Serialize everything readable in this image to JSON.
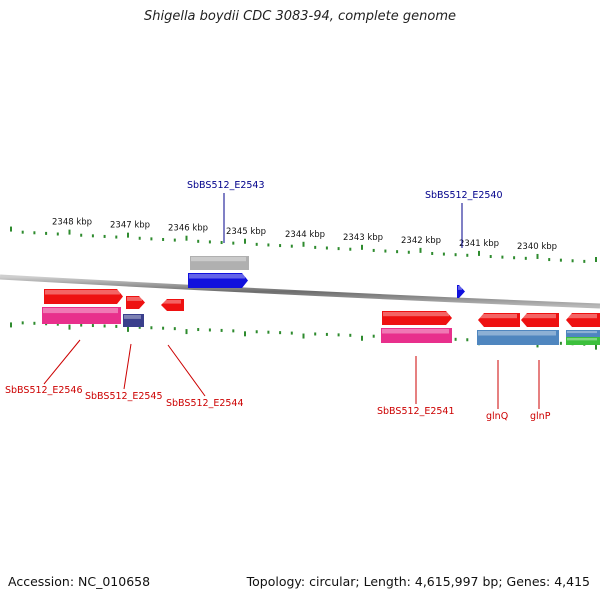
{
  "title": "Shigella boydii CDC 3083-94, complete genome",
  "footer": {
    "accession": "Accession: NC_010658",
    "stats": "Topology: circular; Length: 4,615,997 bp; Genes: 4,415"
  },
  "colors": {
    "backbone": "#8a8a8a",
    "tick": "#2e8b2e",
    "label_forward": "#00008b",
    "label_reverse": "#cc0000",
    "gene_red": "#ee1111",
    "gene_blue": "#1010dd",
    "gene_pink": "#e8308c",
    "gene_steel": "#4f86bf",
    "gene_navy": "#3a3f8c",
    "gene_gray": "#b0b0b0",
    "gene_green": "#3cc03c"
  },
  "ticks": [
    "2348 kbp",
    "2347 kbp",
    "2346 kbp",
    "2345 kbp",
    "2344 kbp",
    "2343 kbp",
    "2342 kbp",
    "2341 kbp",
    "2340 kbp"
  ],
  "labels": {
    "forward": [
      "SbBS512_E2543",
      "SbBS512_E2540"
    ],
    "reverse": [
      "SbBS512_E2546",
      "SbBS512_E2545",
      "SbBS512_E2544",
      "SbBS512_E2541",
      "glnQ",
      "glnP"
    ]
  }
}
